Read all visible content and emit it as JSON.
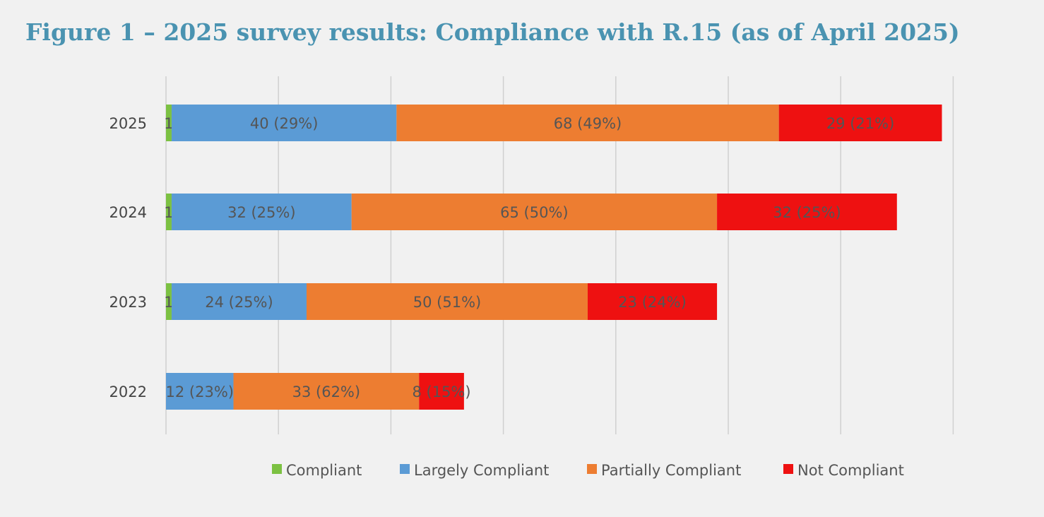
{
  "title": "Figure 1 – 2025 survey results: Compliance with R.15 (as of April 2025)",
  "chart_data": {
    "type": "bar",
    "orientation": "horizontal",
    "stacked": true,
    "grid": true,
    "legend_position": "bottom",
    "xlim": [
      0,
      140
    ],
    "categories": [
      "2025",
      "2024",
      "2023",
      "2022"
    ],
    "series": [
      {
        "name": "Compliant",
        "color": "#7cc142",
        "values": [
          1,
          1,
          1,
          0
        ],
        "labels": [
          "1",
          "1",
          "1",
          ""
        ]
      },
      {
        "name": "Largely Compliant",
        "color": "#5b9bd5",
        "values": [
          40,
          32,
          24,
          12
        ],
        "labels": [
          "40 (29%)",
          "32 (25%)",
          "24 (25%)",
          "12 (23%)"
        ]
      },
      {
        "name": "Partially Compliant",
        "color": "#ed7d31",
        "values": [
          68,
          65,
          50,
          33
        ],
        "labels": [
          "68 (49%)",
          "65 (50%)",
          "50 (51%)",
          "33 (62%)"
        ]
      },
      {
        "name": "Not Compliant",
        "color": "#ee1111",
        "values": [
          29,
          32,
          23,
          8
        ],
        "labels": [
          "29 (21%)",
          "32 (25%)",
          "23 (24%)",
          "8 (15%)"
        ]
      }
    ]
  }
}
